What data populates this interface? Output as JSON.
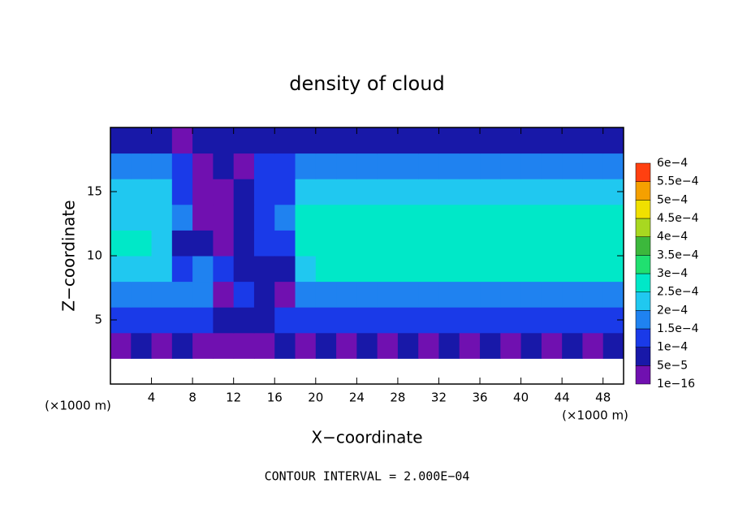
{
  "chart_data": {
    "type": "heatmap",
    "title": "density of cloud",
    "x_label": "X−coordinate",
    "y_label": "Z−coordinate",
    "x_unit": "(×1000 m)",
    "y_unit": "(×1000 m)",
    "note": "CONTOUR INTERVAL = 2.000E−04",
    "xlim": [
      0,
      50
    ],
    "ylim": [
      0,
      20
    ],
    "xticks": [
      4,
      8,
      12,
      16,
      20,
      24,
      28,
      32,
      36,
      40,
      44,
      48
    ],
    "yticks": [
      5,
      10,
      15
    ],
    "x": [
      1,
      3,
      5,
      7,
      9,
      11,
      13,
      15,
      17,
      19,
      21,
      23,
      25,
      27,
      29,
      31,
      33,
      35,
      37,
      39,
      41,
      43,
      45,
      47,
      49
    ],
    "z": [
      1,
      3,
      5,
      7,
      9,
      11,
      13,
      15,
      17,
      19
    ],
    "values": [
      [
        null,
        null,
        null,
        null,
        null,
        null,
        null,
        null,
        null,
        null,
        null,
        null,
        null,
        null,
        null,
        null,
        null,
        null,
        null,
        null,
        null,
        null,
        null,
        null,
        null
      ],
      [
        3e-05,
        6e-05,
        3e-05,
        6e-05,
        3e-05,
        3e-05,
        3e-05,
        3e-05,
        6e-05,
        3e-05,
        6e-05,
        3e-05,
        6e-05,
        3e-05,
        6e-05,
        3e-05,
        6e-05,
        3e-05,
        6e-05,
        3e-05,
        6e-05,
        3e-05,
        6e-05,
        3e-05,
        6e-05
      ],
      [
        0.00012,
        0.00012,
        0.00011,
        0.00012,
        0.00011,
        7e-05,
        5e-05,
        8e-05,
        0.00011,
        0.00013,
        0.00012,
        0.00013,
        0.00011,
        0.00013,
        0.00012,
        0.00013,
        0.00011,
        0.00012,
        0.00013,
        0.00012,
        0.00013,
        0.00011,
        0.00012,
        0.00011,
        0.00012
      ],
      [
        0.00019,
        0.00019,
        0.00019,
        0.00018,
        0.00015,
        4e-05,
        0.00011,
        6e-05,
        4e-05,
        0.00019,
        0.00019,
        0.00019,
        0.00019,
        0.00019,
        0.00019,
        0.00019,
        0.00019,
        0.00019,
        0.00019,
        0.00019,
        0.00019,
        0.00019,
        0.00019,
        0.00019,
        0.00019
      ],
      [
        0.00023,
        0.00023,
        0.00023,
        0.00014,
        0.00018,
        0.0001,
        7e-05,
        9e-05,
        6e-05,
        0.00023,
        0.00025,
        0.00025,
        0.00025,
        0.00025,
        0.00025,
        0.00025,
        0.00025,
        0.00025,
        0.00025,
        0.00025,
        0.00025,
        0.00025,
        0.00025,
        0.00025,
        0.00025
      ],
      [
        0.00025,
        0.00025,
        0.00022,
        5e-05,
        9e-05,
        4e-05,
        9e-05,
        0.00012,
        0.00013,
        0.00025,
        0.00027,
        0.00027,
        0.00027,
        0.00027,
        0.00027,
        0.00027,
        0.00027,
        0.00027,
        0.00027,
        0.00027,
        0.00027,
        0.00027,
        0.00027,
        0.00025,
        0.00025
      ],
      [
        0.00024,
        0.00024,
        0.00024,
        0.00015,
        4e-05,
        4e-05,
        8e-05,
        0.00013,
        0.00016,
        0.00026,
        0.00026,
        0.00026,
        0.00026,
        0.00026,
        0.00026,
        0.00026,
        0.00026,
        0.00026,
        0.00026,
        0.00026,
        0.00026,
        0.00026,
        0.00026,
        0.00026,
        0.00026
      ],
      [
        0.00022,
        0.00022,
        0.00022,
        0.0001,
        4e-05,
        4e-05,
        8e-05,
        0.00012,
        0.00012,
        0.00024,
        0.00024,
        0.00024,
        0.00024,
        0.00024,
        0.00024,
        0.00024,
        0.00024,
        0.00024,
        0.00024,
        0.00024,
        0.00024,
        0.00024,
        0.00024,
        0.00024,
        0.00024
      ],
      [
        0.00015,
        0.00015,
        0.00015,
        0.00012,
        4e-05,
        8e-05,
        4e-05,
        0.0001,
        0.0001,
        0.00016,
        0.00018,
        0.00018,
        0.00018,
        0.00018,
        0.00018,
        0.00018,
        0.00018,
        0.00018,
        0.00018,
        0.00018,
        0.00018,
        0.00018,
        0.00018,
        0.00018,
        0.00018
      ],
      [
        8e-05,
        8e-05,
        6e-05,
        3e-05,
        6e-05,
        8e-05,
        8e-05,
        8e-05,
        8e-05,
        8e-05,
        8e-05,
        8e-05,
        8e-05,
        8e-05,
        8e-05,
        8e-05,
        8e-05,
        8e-05,
        8e-05,
        8e-05,
        8e-05,
        8e-05,
        8e-05,
        8e-05,
        8e-05
      ]
    ],
    "colorbar": {
      "levels": [
        {
          "value": 1e-16,
          "label": "1e−16"
        },
        {
          "value": 5e-05,
          "label": "5e−5"
        },
        {
          "value": 0.0001,
          "label": "1e−4"
        },
        {
          "value": 0.00015,
          "label": "1.5e−4"
        },
        {
          "value": 0.0002,
          "label": "2e−4"
        },
        {
          "value": 0.00025,
          "label": "2.5e−4"
        },
        {
          "value": 0.0003,
          "label": "3e−4"
        },
        {
          "value": 0.00035,
          "label": "3.5e−4"
        },
        {
          "value": 0.0004,
          "label": "4e−4"
        },
        {
          "value": 0.00045,
          "label": "4.5e−4"
        },
        {
          "value": 0.0005,
          "label": "5e−4"
        },
        {
          "value": 0.00055,
          "label": "5.5e−4"
        },
        {
          "value": 0.0006,
          "label": "6e−4"
        }
      ],
      "colors": [
        "#7010b0",
        "#1818a8",
        "#1a3ae8",
        "#1f82f0",
        "#20c8f0",
        "#00e8c8",
        "#20e070",
        "#3cb83c",
        "#a8d820",
        "#f0e000",
        "#f5a000",
        "#ff4010"
      ]
    }
  }
}
